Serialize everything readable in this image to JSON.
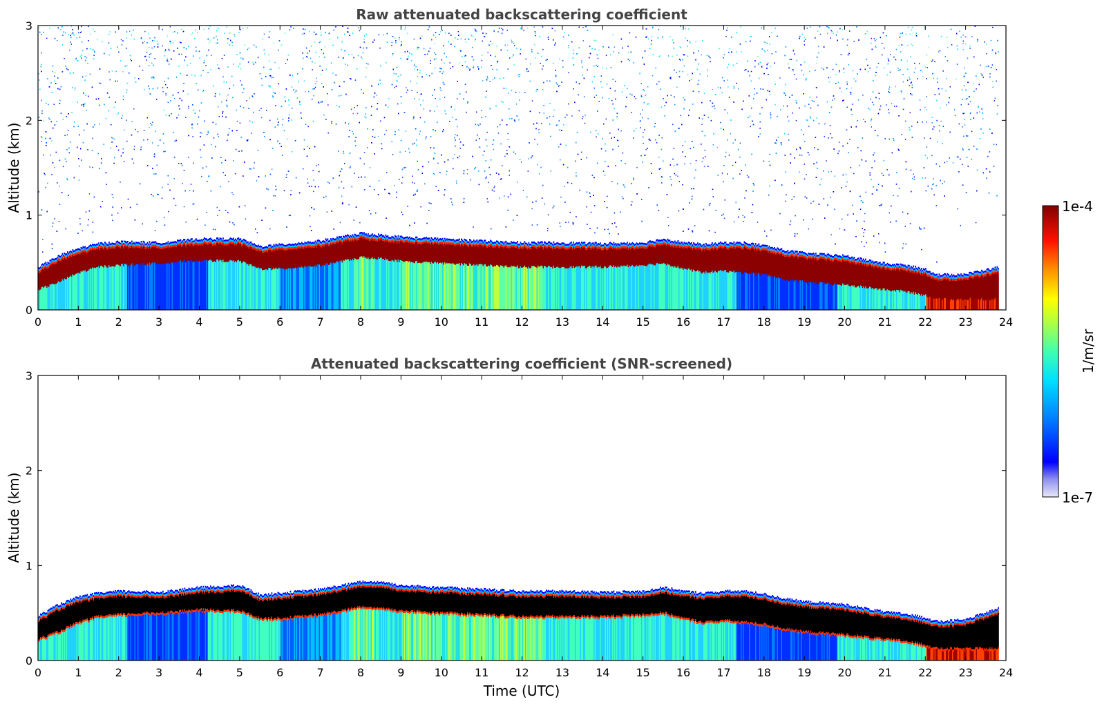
{
  "chart_data": [
    {
      "type": "heatmap",
      "title": "Raw attenuated backscattering coefficient",
      "xlabel": "",
      "ylabel": "Altitude (km)",
      "xlim": [
        0,
        24
      ],
      "ylim": [
        0,
        3
      ],
      "xticks": [
        "0",
        "1",
        "2",
        "3",
        "4",
        "5",
        "6",
        "7",
        "8",
        "9",
        "10",
        "11",
        "12",
        "13",
        "14",
        "15",
        "16",
        "17",
        "18",
        "19",
        "20",
        "21",
        "22",
        "23",
        "24"
      ],
      "yticks": [
        "0",
        "1",
        "2",
        "3"
      ],
      "noise_above_layer": true,
      "layer": {
        "time": [
          0,
          0.5,
          1,
          1.5,
          2,
          3,
          4,
          5,
          5.5,
          6,
          7,
          7.5,
          8,
          8.5,
          9,
          10,
          11,
          12,
          13,
          14,
          15,
          15.5,
          16,
          16.5,
          17,
          17.5,
          18,
          18.5,
          19,
          20,
          21,
          21.5,
          22,
          22.3,
          23,
          23.8
        ],
        "top_km": [
          0.4,
          0.52,
          0.6,
          0.65,
          0.67,
          0.66,
          0.7,
          0.7,
          0.62,
          0.64,
          0.68,
          0.72,
          0.76,
          0.74,
          0.72,
          0.7,
          0.68,
          0.66,
          0.66,
          0.65,
          0.66,
          0.7,
          0.66,
          0.64,
          0.66,
          0.66,
          0.63,
          0.58,
          0.55,
          0.52,
          0.44,
          0.42,
          0.38,
          0.32,
          0.33,
          0.4
        ],
        "base_km": [
          0.22,
          0.3,
          0.4,
          0.46,
          0.48,
          0.5,
          0.53,
          0.52,
          0.44,
          0.44,
          0.48,
          0.52,
          0.56,
          0.55,
          0.52,
          0.5,
          0.48,
          0.46,
          0.46,
          0.46,
          0.48,
          0.5,
          0.44,
          0.4,
          0.42,
          0.4,
          0.38,
          0.33,
          0.3,
          0.27,
          0.22,
          0.2,
          0.16,
          0.12,
          0.12,
          0.12
        ]
      }
    },
    {
      "type": "heatmap",
      "title": "Attenuated backscattering coefficient (SNR-screened)",
      "xlabel": "Time (UTC)",
      "ylabel": "Altitude (km)",
      "xlim": [
        0,
        24
      ],
      "ylim": [
        0,
        3
      ],
      "xticks": [
        "0",
        "1",
        "2",
        "3",
        "4",
        "5",
        "6",
        "7",
        "8",
        "9",
        "10",
        "11",
        "12",
        "13",
        "14",
        "15",
        "16",
        "17",
        "18",
        "19",
        "20",
        "21",
        "22",
        "23",
        "24"
      ],
      "yticks": [
        "0",
        "1",
        "2",
        "3"
      ],
      "noise_above_layer": false,
      "layer": {
        "time": [
          0,
          0.5,
          1,
          1.5,
          2,
          3,
          4,
          5,
          5.5,
          6,
          7,
          7.5,
          8,
          8.5,
          9,
          10,
          11,
          12,
          13,
          14,
          15,
          15.5,
          16,
          16.5,
          17,
          17.5,
          18,
          18.5,
          19,
          20,
          21,
          21.5,
          22,
          22.3,
          23,
          23.8
        ],
        "top_km": [
          0.42,
          0.54,
          0.62,
          0.66,
          0.68,
          0.67,
          0.72,
          0.74,
          0.64,
          0.66,
          0.7,
          0.74,
          0.78,
          0.78,
          0.74,
          0.72,
          0.7,
          0.68,
          0.68,
          0.67,
          0.68,
          0.72,
          0.68,
          0.66,
          0.68,
          0.68,
          0.65,
          0.6,
          0.57,
          0.54,
          0.46,
          0.44,
          0.4,
          0.36,
          0.38,
          0.5
        ],
        "base_km": [
          0.22,
          0.3,
          0.4,
          0.46,
          0.48,
          0.5,
          0.53,
          0.52,
          0.44,
          0.44,
          0.48,
          0.52,
          0.56,
          0.55,
          0.52,
          0.5,
          0.48,
          0.46,
          0.46,
          0.46,
          0.48,
          0.5,
          0.44,
          0.4,
          0.42,
          0.4,
          0.38,
          0.33,
          0.3,
          0.27,
          0.22,
          0.2,
          0.16,
          0.12,
          0.12,
          0.12
        ]
      }
    }
  ],
  "colorbar": {
    "label": "1/m/sr",
    "max_label": "1e-4",
    "min_label": "1e-7",
    "scale": "log",
    "colormap": [
      "#e8e8f8",
      "#0000ff",
      "#00a0ff",
      "#00ffff",
      "#80ff80",
      "#ffff00",
      "#ff8000",
      "#ff0000",
      "#800000"
    ]
  }
}
